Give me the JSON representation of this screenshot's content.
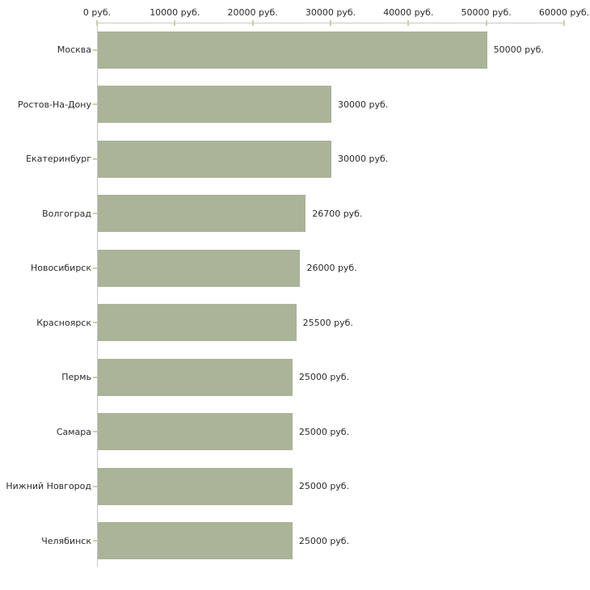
{
  "chart_data": {
    "type": "bar",
    "orientation": "horizontal",
    "title": "",
    "categories": [
      "Москва",
      "Ростов-На-Дону",
      "Екатеринбург",
      "Волгоград",
      "Новосибирск",
      "Красноярск",
      "Пермь",
      "Самара",
      "Нижний Новгород",
      "Челябинск"
    ],
    "values": [
      50000,
      30000,
      30000,
      26700,
      26000,
      25500,
      25000,
      25000,
      25000,
      25000
    ],
    "value_labels": [
      "50000 руб.",
      "30000 руб.",
      "30000 руб.",
      "26700 руб.",
      "26000 руб.",
      "25500 руб.",
      "25000 руб.",
      "25000 руб.",
      "25000 руб.",
      "25000 руб."
    ],
    "x_axis": {
      "position": "top",
      "xlim": [
        0,
        60000
      ],
      "ticks": [
        0,
        10000,
        20000,
        30000,
        40000,
        50000,
        60000
      ],
      "tick_labels": [
        "0 руб.",
        "10000 руб.",
        "20000 руб.",
        "30000 руб.",
        "40000 руб.",
        "50000 руб.",
        "60000 руб."
      ]
    },
    "grid": false,
    "legend": null,
    "colors": {
      "bar": "#abb399",
      "axis_line": "#c8c8c8",
      "tick_mark": "#cfcfa6",
      "text": "#2b2b2b",
      "background": "#ffffff"
    }
  }
}
